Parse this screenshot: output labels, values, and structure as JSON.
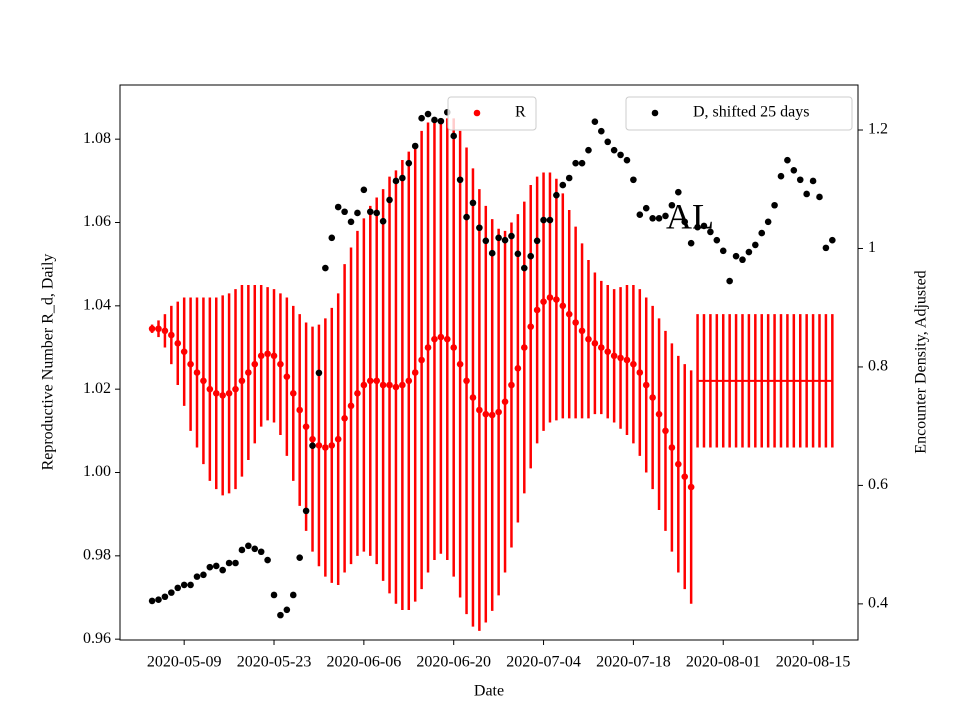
{
  "chart_data": {
    "type": "errorbar",
    "annotation": "AL",
    "xlabel": "Date",
    "ylabel": "Reproductive Number R_d, Daily",
    "y2label": "Encounter Density, Adjusted",
    "xlim": [
      "2020-04-29",
      "2020-08-22"
    ],
    "xticks": [
      "2020-05-09",
      "2020-05-23",
      "2020-06-06",
      "2020-06-20",
      "2020-07-04",
      "2020-07-18",
      "2020-08-01",
      "2020-08-15"
    ],
    "ylim": [
      0.9598,
      1.093
    ],
    "yticks": [
      {
        "value": 0.96,
        "label": "0.96"
      },
      {
        "value": 0.98,
        "label": "0.98"
      },
      {
        "value": 1.0,
        "label": "1.00"
      },
      {
        "value": 1.02,
        "label": "1.02"
      },
      {
        "value": 1.04,
        "label": "1.04"
      },
      {
        "value": 1.06,
        "label": "1.06"
      },
      {
        "value": 1.08,
        "label": "1.08"
      }
    ],
    "y2lim": [
      0.339,
      1.276
    ],
    "y2ticks": [
      0.4,
      0.6,
      0.8,
      1.0,
      1.2
    ],
    "yaxis_color": "#ff0000",
    "series": [
      {
        "name": "R",
        "color": "#ff0000",
        "style": "points",
        "x": [
          "2020-05-04",
          "2020-05-05",
          "2020-05-06",
          "2020-05-07",
          "2020-05-08",
          "2020-05-09",
          "2020-05-10",
          "2020-05-11",
          "2020-05-12",
          "2020-05-13",
          "2020-05-14",
          "2020-05-15",
          "2020-05-16",
          "2020-05-17",
          "2020-05-18",
          "2020-05-19",
          "2020-05-20",
          "2020-05-21",
          "2020-05-22",
          "2020-05-23",
          "2020-05-24",
          "2020-05-25",
          "2020-05-26",
          "2020-05-27",
          "2020-05-28",
          "2020-05-29",
          "2020-05-30",
          "2020-05-31",
          "2020-06-01",
          "2020-06-02",
          "2020-06-03",
          "2020-06-04",
          "2020-06-05",
          "2020-06-06",
          "2020-06-07",
          "2020-06-08",
          "2020-06-09",
          "2020-06-10",
          "2020-06-11",
          "2020-06-12",
          "2020-06-13",
          "2020-06-14",
          "2020-06-15",
          "2020-06-16",
          "2020-06-17",
          "2020-06-18",
          "2020-06-19",
          "2020-06-20",
          "2020-06-21",
          "2020-06-22",
          "2020-06-23",
          "2020-06-24",
          "2020-06-25",
          "2020-06-26",
          "2020-06-27",
          "2020-06-28",
          "2020-06-29",
          "2020-06-30",
          "2020-07-01",
          "2020-07-02",
          "2020-07-03",
          "2020-07-04",
          "2020-07-05",
          "2020-07-06",
          "2020-07-07",
          "2020-07-08",
          "2020-07-09",
          "2020-07-10",
          "2020-07-11",
          "2020-07-12",
          "2020-07-13",
          "2020-07-14",
          "2020-07-15",
          "2020-07-16",
          "2020-07-17",
          "2020-07-18",
          "2020-07-19",
          "2020-07-20",
          "2020-07-21",
          "2020-07-22",
          "2020-07-23",
          "2020-07-24",
          "2020-07-25",
          "2020-07-26",
          "2020-07-27"
        ],
        "values": [
          1.0345,
          1.0345,
          1.034,
          1.033,
          1.031,
          1.029,
          1.026,
          1.024,
          1.022,
          1.02,
          1.019,
          1.0185,
          1.019,
          1.02,
          1.022,
          1.024,
          1.026,
          1.028,
          1.0285,
          1.028,
          1.026,
          1.023,
          1.019,
          1.015,
          1.011,
          1.008,
          1.0065,
          1.006,
          1.0065,
          1.008,
          1.013,
          1.016,
          1.019,
          1.021,
          1.022,
          1.022,
          1.021,
          1.021,
          1.0205,
          1.021,
          1.022,
          1.024,
          1.027,
          1.03,
          1.032,
          1.0325,
          1.032,
          1.03,
          1.026,
          1.022,
          1.018,
          1.015,
          1.014,
          1.0138,
          1.0145,
          1.017,
          1.021,
          1.025,
          1.03,
          1.035,
          1.039,
          1.041,
          1.042,
          1.0415,
          1.04,
          1.038,
          1.036,
          1.034,
          1.032,
          1.031,
          1.03,
          1.029,
          1.028,
          1.0275,
          1.027,
          1.026,
          1.024,
          1.021,
          1.018,
          1.014,
          1.01,
          1.006,
          1.002,
          0.999,
          0.9965
        ],
        "errors": [
          0.001,
          0.002,
          0.004,
          0.007,
          0.01,
          0.013,
          0.016,
          0.018,
          0.02,
          0.022,
          0.023,
          0.024,
          0.024,
          0.024,
          0.023,
          0.021,
          0.019,
          0.017,
          0.016,
          0.016,
          0.017,
          0.019,
          0.021,
          0.023,
          0.025,
          0.027,
          0.029,
          0.031,
          0.033,
          0.035,
          0.037,
          0.038,
          0.039,
          0.04,
          0.042,
          0.044,
          0.047,
          0.05,
          0.052,
          0.054,
          0.055,
          0.055,
          0.055,
          0.054,
          0.053,
          0.052,
          0.053,
          0.055,
          0.056,
          0.056,
          0.055,
          0.053,
          0.05,
          0.047,
          0.044,
          0.041,
          0.039,
          0.037,
          0.035,
          0.034,
          0.032,
          0.031,
          0.03,
          0.029,
          0.027,
          0.025,
          0.023,
          0.021,
          0.019,
          0.017,
          0.016,
          0.016,
          0.016,
          0.017,
          0.018,
          0.019,
          0.02,
          0.021,
          0.022,
          0.023,
          0.024,
          0.025,
          0.026,
          0.027,
          0.028
        ]
      },
      {
        "color": "#ff0000",
        "style": "line",
        "x": [
          "2020-07-28",
          "2020-07-29",
          "2020-07-30",
          "2020-07-31",
          "2020-08-01",
          "2020-08-02",
          "2020-08-03",
          "2020-08-04",
          "2020-08-05",
          "2020-08-06",
          "2020-08-07",
          "2020-08-08",
          "2020-08-09",
          "2020-08-10",
          "2020-08-11",
          "2020-08-12",
          "2020-08-13",
          "2020-08-14",
          "2020-08-15",
          "2020-08-16",
          "2020-08-17",
          "2020-08-18"
        ],
        "values": [
          1.022,
          1.022,
          1.022,
          1.022,
          1.022,
          1.022,
          1.022,
          1.022,
          1.022,
          1.022,
          1.022,
          1.022,
          1.022,
          1.022,
          1.022,
          1.022,
          1.022,
          1.022,
          1.022,
          1.022,
          1.022,
          1.022
        ],
        "errors": [
          0.016,
          0.016,
          0.016,
          0.016,
          0.016,
          0.016,
          0.016,
          0.016,
          0.016,
          0.016,
          0.016,
          0.016,
          0.016,
          0.016,
          0.016,
          0.016,
          0.016,
          0.016,
          0.016,
          0.016,
          0.016,
          0.016
        ]
      },
      {
        "name": "D, shifted 25 days",
        "color": "#000000",
        "style": "points",
        "axis": "y2",
        "x": [
          "2020-05-04",
          "2020-05-05",
          "2020-05-06",
          "2020-05-07",
          "2020-05-08",
          "2020-05-09",
          "2020-05-10",
          "2020-05-11",
          "2020-05-12",
          "2020-05-13",
          "2020-05-14",
          "2020-05-15",
          "2020-05-16",
          "2020-05-17",
          "2020-05-18",
          "2020-05-19",
          "2020-05-20",
          "2020-05-21",
          "2020-05-22",
          "2020-05-23",
          "2020-05-24",
          "2020-05-25",
          "2020-05-26",
          "2020-05-27",
          "2020-05-28",
          "2020-05-29",
          "2020-05-30",
          "2020-05-31",
          "2020-06-01",
          "2020-06-02",
          "2020-06-03",
          "2020-06-04",
          "2020-06-05",
          "2020-06-06",
          "2020-06-07",
          "2020-06-08",
          "2020-06-09",
          "2020-06-10",
          "2020-06-11",
          "2020-06-12",
          "2020-06-13",
          "2020-06-14",
          "2020-06-15",
          "2020-06-16",
          "2020-06-17",
          "2020-06-18",
          "2020-06-19",
          "2020-06-20",
          "2020-06-21",
          "2020-06-22",
          "2020-06-23",
          "2020-06-24",
          "2020-06-25",
          "2020-06-26",
          "2020-06-27",
          "2020-06-28",
          "2020-06-29",
          "2020-06-30",
          "2020-07-01",
          "2020-07-02",
          "2020-07-03",
          "2020-07-04",
          "2020-07-05",
          "2020-07-06",
          "2020-07-07",
          "2020-07-08",
          "2020-07-09",
          "2020-07-10",
          "2020-07-11",
          "2020-07-12",
          "2020-07-13",
          "2020-07-14",
          "2020-07-15",
          "2020-07-16",
          "2020-07-17",
          "2020-07-18",
          "2020-07-19",
          "2020-07-20",
          "2020-07-21",
          "2020-07-22",
          "2020-07-23",
          "2020-07-24",
          "2020-07-25",
          "2020-07-26",
          "2020-07-27",
          "2020-07-28",
          "2020-07-29",
          "2020-07-30",
          "2020-07-31",
          "2020-08-01",
          "2020-08-02",
          "2020-08-03",
          "2020-08-04",
          "2020-08-05",
          "2020-08-06",
          "2020-08-07",
          "2020-08-08",
          "2020-08-09",
          "2020-08-10",
          "2020-08-11",
          "2020-08-12",
          "2020-08-13",
          "2020-08-14",
          "2020-08-15",
          "2020-08-16",
          "2020-08-17",
          "2020-08-18"
        ],
        "values": [
          0.405,
          0.407,
          0.412,
          0.419,
          0.427,
          0.432,
          0.432,
          0.446,
          0.449,
          0.462,
          0.464,
          0.457,
          0.469,
          0.469,
          0.491,
          0.498,
          0.493,
          0.488,
          0.474,
          0.415,
          0.381,
          0.39,
          0.415,
          0.478,
          0.557,
          0.667,
          0.79,
          0.967,
          1.018,
          1.07,
          1.062,
          1.045,
          1.06,
          1.099,
          1.062,
          1.06,
          1.046,
          1.082,
          1.114,
          1.119,
          1.144,
          1.173,
          1.22,
          1.227,
          1.217,
          1.215,
          1.23,
          1.19,
          1.116,
          1.053,
          1.077,
          1.035,
          1.013,
          0.992,
          1.018,
          1.014,
          1.021,
          0.991,
          0.967,
          0.987,
          1.013,
          1.048,
          1.048,
          1.09,
          1.107,
          1.119,
          1.144,
          1.144,
          1.166,
          1.214,
          1.198,
          1.18,
          1.166,
          1.158,
          1.149,
          1.116,
          1.057,
          1.068,
          1.051,
          1.051,
          1.055,
          1.073,
          1.095,
          1.045,
          1.009,
          1.036,
          1.038,
          1.028,
          1.014,
          0.996,
          0.945,
          0.987,
          0.981,
          0.994,
          1.006,
          1.026,
          1.045,
          1.073,
          1.122,
          1.149,
          1.132,
          1.116,
          1.092,
          1.114,
          1.087,
          1.001,
          1.014
        ]
      }
    ]
  }
}
